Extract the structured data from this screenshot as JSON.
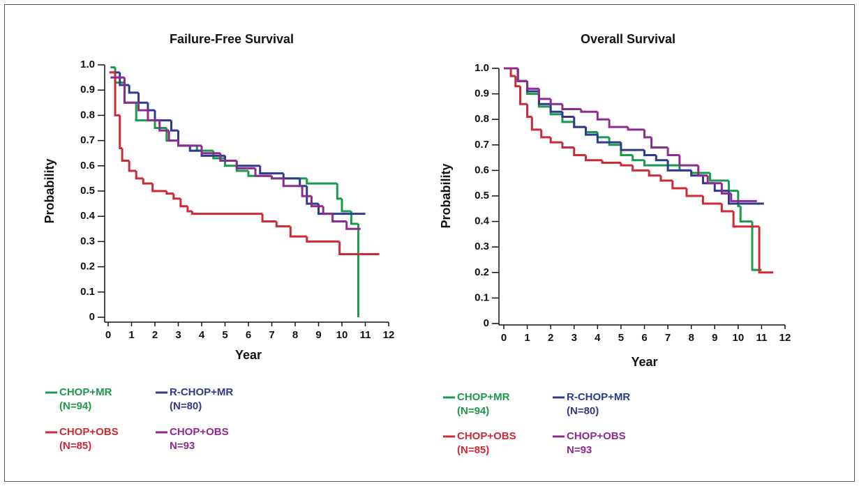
{
  "chart_data": [
    {
      "type": "step-line",
      "title": "Failure-Free Survival",
      "x_label": "Year",
      "y_label": "Probability",
      "xlim": [
        0,
        12
      ],
      "ylim": [
        0,
        1
      ],
      "xticks": [
        0,
        1,
        2,
        3,
        4,
        5,
        6,
        7,
        8,
        9,
        10,
        11,
        12
      ],
      "yticks": [
        0,
        0.1,
        0.2,
        0.3,
        0.4,
        0.5,
        0.6,
        0.7,
        0.8,
        0.9,
        {
          "value": 1,
          "label": "1.0"
        }
      ],
      "series": [
        {
          "name": "CHOP+MR",
          "n_label": "(N=94)",
          "color": "#1a9a4a",
          "x": [
            0.1,
            0.3,
            0.7,
            1.2,
            2,
            2.5,
            3,
            3.8,
            4.5,
            5,
            5.5,
            6,
            7,
            8.5,
            9.8,
            10,
            10.4,
            10.7
          ],
          "values": [
            0.99,
            0.93,
            0.85,
            0.78,
            0.75,
            0.7,
            0.68,
            0.66,
            0.63,
            0.6,
            0.58,
            0.56,
            0.55,
            0.53,
            0.47,
            0.42,
            0.37,
            0
          ]
        },
        {
          "name": "R-CHOP+MR",
          "n_label": "(N=80)",
          "color": "#2e3a8c",
          "x": [
            0.2,
            0.5,
            0.9,
            1.3,
            1.7,
            2,
            2.7,
            3,
            3.5,
            4,
            5,
            5.5,
            6.5,
            7.5,
            8.2,
            8.5,
            9,
            11
          ],
          "values": [
            0.97,
            0.92,
            0.89,
            0.85,
            0.82,
            0.78,
            0.74,
            0.68,
            0.66,
            0.64,
            0.62,
            0.6,
            0.57,
            0.55,
            0.52,
            0.45,
            0.41,
            0.41
          ]
        },
        {
          "name": "CHOP+OBS",
          "n_label": "(N=85)",
          "color": "#cc2a36",
          "x": [
            0.05,
            0.3,
            0.5,
            0.6,
            0.9,
            1.2,
            1.5,
            1.9,
            2.5,
            2.8,
            3.1,
            3.4,
            3.6,
            6.6,
            7.2,
            7.8,
            8.5,
            9.9,
            11.6
          ],
          "values": [
            0.97,
            0.8,
            0.67,
            0.62,
            0.58,
            0.55,
            0.53,
            0.5,
            0.49,
            0.47,
            0.44,
            0.42,
            0.41,
            0.38,
            0.36,
            0.32,
            0.3,
            0.25,
            0.25
          ]
        },
        {
          "name": "CHOP+OBS",
          "n_label": "N=93",
          "color": "#8e2b8e",
          "x": [
            0.1,
            0.7,
            1.3,
            1.7,
            2.2,
            2.6,
            3,
            4,
            4.8,
            5.5,
            6.3,
            7,
            7.5,
            8.3,
            8.7,
            9.2,
            9.6,
            10.2,
            10.8
          ],
          "values": [
            0.95,
            0.85,
            0.82,
            0.78,
            0.74,
            0.7,
            0.68,
            0.65,
            0.62,
            0.59,
            0.56,
            0.55,
            0.52,
            0.48,
            0.44,
            0.41,
            0.38,
            0.35,
            0.35
          ]
        }
      ]
    },
    {
      "type": "step-line",
      "title": "Overall Survival",
      "x_label": "Year",
      "y_label": "Probability",
      "xlim": [
        0,
        12
      ],
      "ylim": [
        0,
        1
      ],
      "xticks": [
        0,
        1,
        2,
        3,
        4,
        5,
        6,
        7,
        8,
        9,
        10,
        11,
        12
      ],
      "yticks": [
        0,
        0.1,
        0.2,
        0.3,
        0.4,
        0.5,
        0.6,
        0.7,
        0.8,
        0.9,
        {
          "value": 1,
          "label": "1.0"
        }
      ],
      "series": [
        {
          "name": "CHOP+MR",
          "n_label": "(N=94)",
          "color": "#1a9a4a",
          "x": [
            0,
            0.6,
            1,
            1.5,
            2,
            2.5,
            3,
            3.5,
            4,
            4.5,
            5,
            5.5,
            6,
            7.5,
            8,
            8.8,
            9.6,
            10,
            10.1,
            10.6,
            11
          ],
          "values": [
            1,
            0.95,
            0.9,
            0.85,
            0.82,
            0.79,
            0.77,
            0.75,
            0.73,
            0.7,
            0.66,
            0.64,
            0.62,
            0.6,
            0.59,
            0.56,
            0.52,
            0.46,
            0.4,
            0.21,
            0.21
          ]
        },
        {
          "name": "R-CHOP+MR",
          "n_label": "(N=80)",
          "color": "#2e3a8c",
          "x": [
            0,
            0.6,
            1,
            1.5,
            2,
            2.5,
            3,
            3.5,
            4,
            5,
            6,
            6.5,
            7,
            8,
            8.5,
            9,
            9.6,
            11.1
          ],
          "values": [
            1,
            0.95,
            0.91,
            0.86,
            0.83,
            0.81,
            0.77,
            0.74,
            0.71,
            0.68,
            0.66,
            0.64,
            0.6,
            0.58,
            0.55,
            0.52,
            0.47,
            0.47
          ]
        },
        {
          "name": "CHOP+OBS",
          "n_label": "(N=85)",
          "color": "#cc2a36",
          "x": [
            0,
            0.3,
            0.5,
            0.7,
            1,
            1.2,
            1.6,
            2,
            2.5,
            3,
            3.5,
            4.2,
            5,
            5.5,
            6.2,
            6.7,
            7.2,
            7.8,
            8.5,
            9.3,
            9.8,
            10.9,
            11.5
          ],
          "values": [
            1,
            0.97,
            0.93,
            0.86,
            0.81,
            0.76,
            0.73,
            0.71,
            0.69,
            0.66,
            0.64,
            0.63,
            0.62,
            0.6,
            0.58,
            0.56,
            0.53,
            0.5,
            0.47,
            0.44,
            0.38,
            0.2,
            0.2
          ]
        },
        {
          "name": "CHOP+OBS",
          "n_label": "N=93",
          "color": "#8e2b8e",
          "x": [
            0,
            0.6,
            1,
            1.5,
            2,
            2.5,
            3.3,
            4,
            4.5,
            5.3,
            6,
            6.3,
            7,
            7.5,
            8.3,
            8.7,
            9.3,
            9.7,
            10.8
          ],
          "values": [
            1,
            0.95,
            0.92,
            0.88,
            0.86,
            0.84,
            0.83,
            0.8,
            0.77,
            0.76,
            0.73,
            0.69,
            0.66,
            0.62,
            0.58,
            0.55,
            0.51,
            0.48,
            0.48
          ]
        }
      ]
    }
  ]
}
